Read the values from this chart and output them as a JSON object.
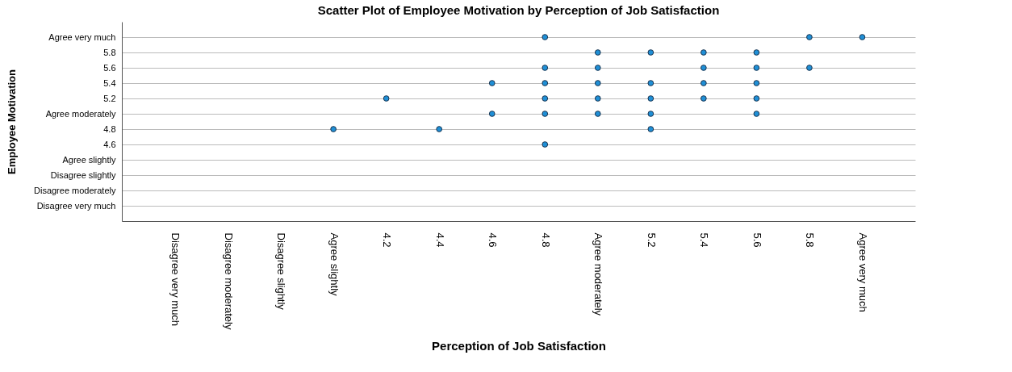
{
  "chart_data": {
    "type": "scatter",
    "title": "Scatter Plot of Employee Motivation by Perception of Job Satisfaction",
    "xlabel": "Perception of Job Satisfaction",
    "ylabel": "Employee Motivation",
    "categories": [
      "Disagree very much",
      "Disagree moderately",
      "Disagree slightly",
      "Agree slightly",
      "4.2",
      "4.4",
      "4.6",
      "4.8",
      "Agree moderately",
      "5.2",
      "5.4",
      "5.6",
      "5.8",
      "Agree very much"
    ],
    "ylim": [
      3.6,
      6.2
    ],
    "yticks": [
      {
        "value": 3.8,
        "label": "Disagree very much"
      },
      {
        "value": 4,
        "label": "Disagree moderately"
      },
      {
        "value": 4.2,
        "label": "Disagree slightly"
      },
      {
        "value": 4.4,
        "label": "Agree slightly"
      },
      4.6,
      4.8,
      {
        "value": 5,
        "label": "Agree moderately"
      },
      5.2,
      5.4,
      5.6,
      5.8,
      {
        "value": 6,
        "label": "Agree very much"
      }
    ],
    "series": [
      {
        "color": "#1f8fd6",
        "x": [
          "4.8",
          "5.8",
          "Agree very much",
          "Agree moderately",
          "5.2",
          "5.4",
          "5.6",
          "4.8",
          "Agree moderately",
          "5.4",
          "5.6",
          "5.8",
          "4.6",
          "4.8",
          "Agree moderately",
          "5.2",
          "5.4",
          "5.6",
          "4.2",
          "4.8",
          "Agree moderately",
          "5.2",
          "5.4",
          "5.6",
          "4.6",
          "4.8",
          "Agree moderately",
          "5.2",
          "5.6",
          "Agree slightly",
          "4.4",
          "5.2",
          "4.8"
        ],
        "values": [
          6,
          6,
          6,
          5.8,
          5.8,
          5.8,
          5.8,
          5.6,
          5.6,
          5.6,
          5.6,
          5.6,
          5.4,
          5.4,
          5.4,
          5.4,
          5.4,
          5.4,
          5.2,
          5.2,
          5.2,
          5.2,
          5.2,
          5.2,
          5,
          5,
          5,
          5,
          5,
          4.8,
          4.8,
          4.8,
          4.6
        ]
      }
    ],
    "grid": "y",
    "marker": "circle",
    "legend": false
  }
}
